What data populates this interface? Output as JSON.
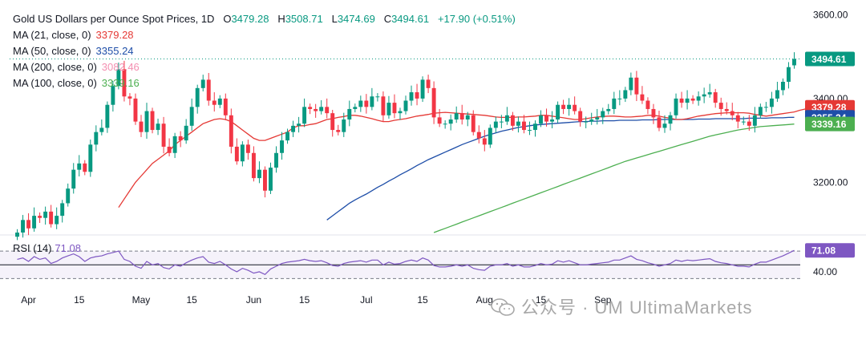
{
  "header": {
    "symbol_title": "Gold US Dollars per Ounce Spot Prices, 1D",
    "open_label": "O",
    "open": "3479.28",
    "high_label": "H",
    "high": "3508.71",
    "low_label": "L",
    "low": "3474.69",
    "close_label": "C",
    "close": "3494.61",
    "change": "+17.90 (+0.51%)"
  },
  "moving_averages": [
    {
      "label": "MA (21, close, 0)",
      "value": "3379.28",
      "color": "#e53935"
    },
    {
      "label": "MA (50, close, 0)",
      "value": "3355.24",
      "color": "#1e4ea8"
    },
    {
      "label": "MA (200, close, 0)",
      "value": "3082.46",
      "color": "#f48fb1"
    },
    {
      "label": "MA (100, close, 0)",
      "value": "3339.16",
      "color": "#4caf50"
    }
  ],
  "rsi": {
    "label": "RSI (14)",
    "value": "71.08",
    "color": "#7e57c2",
    "axis_tick": "40.00"
  },
  "watermark": "公众号 · UM UltimaMarkets",
  "colors": {
    "up": "#089981",
    "down": "#f23645",
    "ma21": "#e53935",
    "ma50": "#1e4ea8",
    "ma100": "#4caf50",
    "rsi": "#7e57c2",
    "last_price": "#089981"
  },
  "chart_data": {
    "type": "candlestick",
    "title": "Gold US Dollars per Ounce Spot Prices",
    "timeframe": "1D",
    "x_tick_labels": [
      "Apr",
      "15",
      "May",
      "15",
      "Jun",
      "15",
      "Jul",
      "15",
      "Aug",
      "15",
      "Sep"
    ],
    "y_tick_labels": [
      "3600.00",
      "3400.00",
      "3200.00"
    ],
    "ylim": [
      3080,
      3620
    ],
    "price_labels": [
      {
        "text": "3494.61",
        "value": 3494.61,
        "color": "#089981"
      },
      {
        "text": "3379.28",
        "value": 3379.28,
        "color": "#e53935"
      },
      {
        "text": "3355.24",
        "value": 3355.24,
        "color": "#1e4ea8"
      },
      {
        "text": "3339.16",
        "value": 3339.16,
        "color": "#4caf50"
      }
    ],
    "closes": [
      3080,
      3110,
      3090,
      3120,
      3115,
      3130,
      3100,
      3120,
      3150,
      3185,
      3230,
      3245,
      3225,
      3290,
      3320,
      3330,
      3385,
      3430,
      3470,
      3405,
      3400,
      3345,
      3320,
      3370,
      3325,
      3340,
      3285,
      3270,
      3310,
      3300,
      3335,
      3380,
      3425,
      3445,
      3395,
      3385,
      3400,
      3360,
      3285,
      3250,
      3290,
      3270,
      3210,
      3230,
      3180,
      3235,
      3270,
      3300,
      3320,
      3335,
      3340,
      3380,
      3375,
      3370,
      3380,
      3365,
      3325,
      3320,
      3350,
      3375,
      3380,
      3395,
      3380,
      3405,
      3405,
      3360,
      3390,
      3365,
      3370,
      3395,
      3415,
      3400,
      3445,
      3425,
      3355,
      3340,
      3340,
      3350,
      3365,
      3350,
      3360,
      3320,
      3305,
      3290,
      3330,
      3345,
      3345,
      3360,
      3335,
      3345,
      3325,
      3325,
      3340,
      3360,
      3345,
      3350,
      3385,
      3375,
      3385,
      3370,
      3345,
      3345,
      3350,
      3355,
      3370,
      3375,
      3400,
      3400,
      3420,
      3450,
      3410,
      3395,
      3375,
      3355,
      3330,
      3340,
      3360,
      3400,
      3390,
      3400,
      3395,
      3405,
      3410,
      3415,
      3390,
      3375,
      3370,
      3360,
      3345,
      3345,
      3335,
      3360,
      3380,
      3380,
      3400,
      3420,
      3440,
      3475,
      3494.61
    ],
    "opens": [
      3070,
      3080,
      3110,
      3090,
      3120,
      3115,
      3130,
      3100,
      3120,
      3150,
      3185,
      3230,
      3245,
      3225,
      3290,
      3320,
      3330,
      3385,
      3430,
      3470,
      3405,
      3400,
      3345,
      3320,
      3370,
      3325,
      3340,
      3285,
      3270,
      3310,
      3300,
      3335,
      3380,
      3425,
      3445,
      3395,
      3385,
      3400,
      3360,
      3285,
      3250,
      3290,
      3270,
      3210,
      3230,
      3180,
      3235,
      3270,
      3300,
      3320,
      3335,
      3340,
      3380,
      3375,
      3370,
      3380,
      3365,
      3325,
      3320,
      3350,
      3375,
      3380,
      3395,
      3380,
      3405,
      3405,
      3360,
      3390,
      3365,
      3370,
      3395,
      3415,
      3400,
      3445,
      3425,
      3355,
      3340,
      3340,
      3350,
      3365,
      3350,
      3360,
      3320,
      3305,
      3290,
      3330,
      3345,
      3345,
      3360,
      3335,
      3345,
      3325,
      3325,
      3340,
      3360,
      3345,
      3350,
      3385,
      3375,
      3385,
      3370,
      3345,
      3345,
      3350,
      3355,
      3370,
      3375,
      3400,
      3400,
      3420,
      3450,
      3410,
      3395,
      3375,
      3355,
      3330,
      3340,
      3360,
      3400,
      3390,
      3400,
      3395,
      3405,
      3410,
      3415,
      3390,
      3375,
      3370,
      3360,
      3345,
      3345,
      3335,
      3360,
      3380,
      3380,
      3400,
      3420,
      3440,
      3479.28
    ],
    "ma21": {
      "start": 18,
      "values": [
        3140,
        3160,
        3180,
        3200,
        3215,
        3230,
        3245,
        3255,
        3265,
        3275,
        3290,
        3300,
        3310,
        3320,
        3330,
        3340,
        3345,
        3350,
        3352,
        3350,
        3345,
        3335,
        3325,
        3315,
        3305,
        3300,
        3300,
        3305,
        3310,
        3315,
        3320,
        3330,
        3335,
        3335,
        3338,
        3340,
        3345,
        3350,
        3352,
        3355,
        3357,
        3360,
        3360,
        3358,
        3355,
        3352,
        3348,
        3345,
        3345,
        3348,
        3350,
        3352,
        3355,
        3358,
        3360,
        3362,
        3365,
        3366,
        3367,
        3366,
        3365,
        3364,
        3363,
        3362,
        3361,
        3360,
        3358,
        3356,
        3355,
        3355,
        3355,
        3356,
        3356,
        3357,
        3358,
        3360,
        3360,
        3358,
        3356,
        3354,
        3352,
        3350,
        3350,
        3352,
        3354,
        3356,
        3357,
        3358,
        3358,
        3357,
        3356,
        3356,
        3357,
        3358,
        3360,
        3360,
        3358,
        3355,
        3353,
        3350,
        3350,
        3352,
        3355,
        3358,
        3360,
        3362,
        3364,
        3365,
        3366,
        3366,
        3366,
        3366,
        3365,
        3362,
        3360,
        3358,
        3360,
        3362,
        3364,
        3366,
        3368,
        3372,
        3375,
        3379.28
      ]
    },
    "ma50": {
      "start": 55,
      "values": [
        3110,
        3120,
        3130,
        3140,
        3150,
        3158,
        3165,
        3172,
        3180,
        3188,
        3195,
        3203,
        3210,
        3218,
        3225,
        3232,
        3240,
        3247,
        3254,
        3260,
        3266,
        3272,
        3278,
        3284,
        3290,
        3295,
        3300,
        3305,
        3310,
        3314,
        3318,
        3322,
        3325,
        3328,
        3331,
        3333,
        3335,
        3337,
        3338,
        3339,
        3340,
        3341,
        3342,
        3343,
        3344,
        3345,
        3345,
        3346,
        3346,
        3347,
        3347,
        3347,
        3348,
        3348,
        3348,
        3348,
        3349,
        3349,
        3349,
        3350,
        3350,
        3350,
        3350,
        3350,
        3350,
        3350,
        3351,
        3351,
        3351,
        3352,
        3352,
        3352,
        3352,
        3352,
        3352,
        3353,
        3353,
        3353,
        3353,
        3354,
        3354,
        3354,
        3355,
        3355.24
      ]
    },
    "ma100": {
      "start": 74,
      "values": [
        3080,
        3085,
        3090,
        3095,
        3100,
        3105,
        3110,
        3115,
        3120,
        3125,
        3130,
        3135,
        3140,
        3145,
        3150,
        3155,
        3160,
        3165,
        3170,
        3175,
        3180,
        3185,
        3190,
        3195,
        3200,
        3205,
        3210,
        3215,
        3220,
        3225,
        3230,
        3235,
        3240,
        3245,
        3250,
        3254,
        3258,
        3262,
        3266,
        3270,
        3274,
        3278,
        3282,
        3286,
        3290,
        3294,
        3298,
        3302,
        3306,
        3310,
        3313,
        3316,
        3319,
        3322,
        3325,
        3327,
        3329,
        3331,
        3333,
        3334,
        3335,
        3336,
        3337,
        3338,
        3339.16
      ]
    },
    "rsi_values": [
      58,
      60,
      55,
      62,
      58,
      60,
      52,
      55,
      60,
      63,
      66,
      62,
      55,
      60,
      62,
      63,
      66,
      68,
      70,
      58,
      55,
      48,
      45,
      55,
      50,
      52,
      46,
      44,
      50,
      48,
      53,
      57,
      60,
      62,
      54,
      52,
      55,
      50,
      44,
      40,
      45,
      42,
      38,
      40,
      36,
      44,
      48,
      52,
      54,
      55,
      56,
      58,
      56,
      55,
      56,
      53,
      49,
      48,
      52,
      54,
      55,
      56,
      54,
      57,
      57,
      50,
      54,
      51,
      52,
      55,
      57,
      55,
      60,
      57,
      49,
      47,
      47,
      48,
      50,
      48,
      50,
      45,
      43,
      42,
      48,
      50,
      50,
      52,
      48,
      50,
      47,
      47,
      49,
      52,
      50,
      51,
      56,
      54,
      56,
      53,
      50,
      50,
      51,
      52,
      53,
      54,
      57,
      57,
      60,
      63,
      58,
      56,
      53,
      51,
      48,
      50,
      52,
      57,
      55,
      57,
      56,
      57,
      58,
      59,
      55,
      53,
      52,
      50,
      48,
      48,
      47,
      51,
      54,
      54,
      57,
      60,
      63,
      67,
      71.08
    ],
    "rsi_ylim": [
      20,
      90
    ]
  }
}
